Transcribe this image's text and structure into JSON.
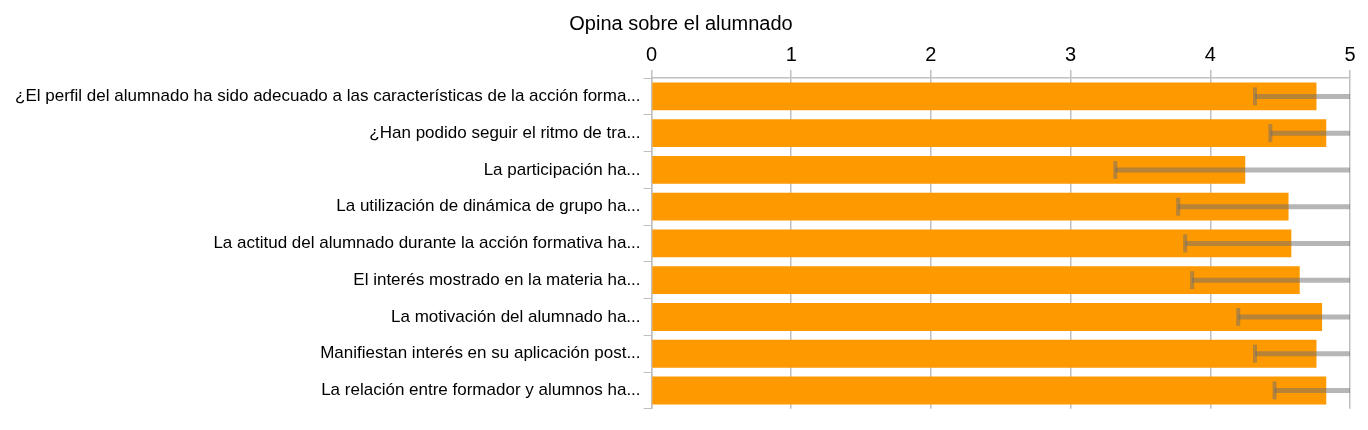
{
  "chart_data": {
    "type": "bar",
    "orientation": "horizontal",
    "title": "Opina sobre el alumnado",
    "categories": [
      "¿El perfil del alumnado ha sido adecuado a las características de la acción forma...",
      "¿Han podido seguir el ritmo de tra...",
      "La participación ha...",
      "La utilización de dinámica de grupo ha...",
      "La actitud del alumnado durante la acción formativa ha...",
      "El interés mostrado en la materia ha...",
      "La motivación del alumnado ha...",
      "Manifiestan interés en su aplicación post...",
      "La relación entre formador y alumnos ha..."
    ],
    "values": [
      4.76,
      4.83,
      4.25,
      4.56,
      4.58,
      4.64,
      4.8,
      4.76,
      4.83
    ],
    "errors": [
      [
        4.32,
        5
      ],
      [
        4.43,
        5
      ],
      [
        3.32,
        5
      ],
      [
        3.77,
        5
      ],
      [
        3.82,
        5
      ],
      [
        3.87,
        5
      ],
      [
        4.2,
        5
      ],
      [
        4.32,
        5
      ],
      [
        4.46,
        5
      ]
    ],
    "color": "#ff9900",
    "xlim": [
      0,
      5
    ],
    "xticks": [
      0,
      1,
      2,
      3,
      4,
      5
    ],
    "grid": "x",
    "legend": false
  }
}
